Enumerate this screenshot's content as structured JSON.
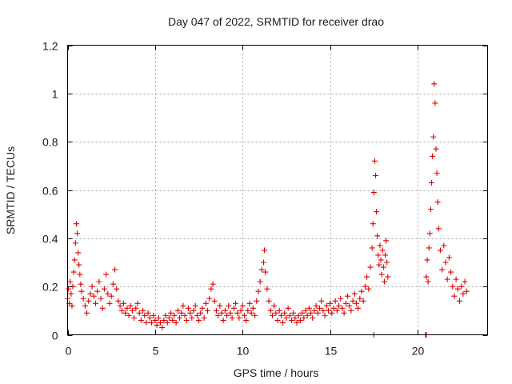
{
  "chart_data": {
    "type": "scatter",
    "title": "Day 047 of 2022, SRMTID for receiver drao",
    "xlabel": "GPS time / hours",
    "ylabel": "SRMTID / TECUs",
    "xlim": [
      0,
      24
    ],
    "ylim": [
      0,
      1.2
    ],
    "xticks": [
      0,
      5,
      10,
      15,
      20
    ],
    "yticks": [
      0,
      0.2,
      0.4,
      0.6,
      0.8,
      1,
      1.2
    ],
    "ytick_labels": [
      "0",
      "0.2",
      "0.4",
      "0.6",
      "0.8",
      "1",
      "1.2"
    ],
    "grid": true,
    "marker": "plus",
    "color": "#e00000",
    "series": [
      {
        "name": "drao",
        "points": [
          [
            0.0,
            0.15
          ],
          [
            0.05,
            0.19
          ],
          [
            0.1,
            0.13
          ],
          [
            0.15,
            0.22
          ],
          [
            0.2,
            0.17
          ],
          [
            0.25,
            0.12
          ],
          [
            0.3,
            0.2
          ],
          [
            0.35,
            0.26
          ],
          [
            0.4,
            0.31
          ],
          [
            0.45,
            0.38
          ],
          [
            0.5,
            0.46
          ],
          [
            0.55,
            0.42
          ],
          [
            0.6,
            0.34
          ],
          [
            0.65,
            0.29
          ],
          [
            0.7,
            0.25
          ],
          [
            0.75,
            0.21
          ],
          [
            0.8,
            0.18
          ],
          [
            0.9,
            0.15
          ],
          [
            1.0,
            0.12
          ],
          [
            1.1,
            0.09
          ],
          [
            1.2,
            0.14
          ],
          [
            1.3,
            0.17
          ],
          [
            1.4,
            0.2
          ],
          [
            1.5,
            0.16
          ],
          [
            1.6,
            0.13
          ],
          [
            1.7,
            0.18
          ],
          [
            1.8,
            0.22
          ],
          [
            1.9,
            0.15
          ],
          [
            2.0,
            0.11
          ],
          [
            2.1,
            0.19
          ],
          [
            2.2,
            0.25
          ],
          [
            2.3,
            0.17
          ],
          [
            2.4,
            0.13
          ],
          [
            2.5,
            0.16
          ],
          [
            2.6,
            0.21
          ],
          [
            2.7,
            0.27
          ],
          [
            2.8,
            0.19
          ],
          [
            2.9,
            0.14
          ],
          [
            3.0,
            0.12
          ],
          [
            3.1,
            0.1
          ],
          [
            3.2,
            0.13
          ],
          [
            3.3,
            0.09
          ],
          [
            3.4,
            0.11
          ],
          [
            3.5,
            0.08
          ],
          [
            3.6,
            0.12
          ],
          [
            3.7,
            0.1
          ],
          [
            3.8,
            0.07
          ],
          [
            3.9,
            0.11
          ],
          [
            4.0,
            0.13
          ],
          [
            4.1,
            0.09
          ],
          [
            4.2,
            0.06
          ],
          [
            4.3,
            0.1
          ],
          [
            4.4,
            0.08
          ],
          [
            4.5,
            0.05
          ],
          [
            4.6,
            0.09
          ],
          [
            4.7,
            0.07
          ],
          [
            4.8,
            0.05
          ],
          [
            4.9,
            0.08
          ],
          [
            5.0,
            0.06
          ],
          [
            5.1,
            0.04
          ],
          [
            5.2,
            0.07
          ],
          [
            5.3,
            0.05
          ],
          [
            5.4,
            0.03
          ],
          [
            5.5,
            0.06
          ],
          [
            5.6,
            0.08
          ],
          [
            5.7,
            0.05
          ],
          [
            5.8,
            0.07
          ],
          [
            5.9,
            0.09
          ],
          [
            6.0,
            0.06
          ],
          [
            6.1,
            0.08
          ],
          [
            6.2,
            0.05
          ],
          [
            6.3,
            0.1
          ],
          [
            6.4,
            0.07
          ],
          [
            6.5,
            0.09
          ],
          [
            6.6,
            0.12
          ],
          [
            6.7,
            0.08
          ],
          [
            6.8,
            0.06
          ],
          [
            6.9,
            0.11
          ],
          [
            7.0,
            0.09
          ],
          [
            7.1,
            0.07
          ],
          [
            7.2,
            0.1
          ],
          [
            7.3,
            0.12
          ],
          [
            7.4,
            0.08
          ],
          [
            7.5,
            0.06
          ],
          [
            7.6,
            0.09
          ],
          [
            7.7,
            0.11
          ],
          [
            7.8,
            0.07
          ],
          [
            7.9,
            0.13
          ],
          [
            8.0,
            0.1
          ],
          [
            8.1,
            0.15
          ],
          [
            8.2,
            0.19
          ],
          [
            8.3,
            0.21
          ],
          [
            8.4,
            0.14
          ],
          [
            8.5,
            0.1
          ],
          [
            8.6,
            0.08
          ],
          [
            8.7,
            0.12
          ],
          [
            8.8,
            0.09
          ],
          [
            8.9,
            0.06
          ],
          [
            9.0,
            0.1
          ],
          [
            9.1,
            0.08
          ],
          [
            9.2,
            0.12
          ],
          [
            9.3,
            0.09
          ],
          [
            9.4,
            0.07
          ],
          [
            9.5,
            0.11
          ],
          [
            9.6,
            0.13
          ],
          [
            9.7,
            0.09
          ],
          [
            9.8,
            0.07
          ],
          [
            9.9,
            0.1
          ],
          [
            10.0,
            0.12
          ],
          [
            10.1,
            0.08
          ],
          [
            10.2,
            0.06
          ],
          [
            10.3,
            0.1
          ],
          [
            10.4,
            0.13
          ],
          [
            10.5,
            0.09
          ],
          [
            10.6,
            0.11
          ],
          [
            10.7,
            0.08
          ],
          [
            10.8,
            0.14
          ],
          [
            10.9,
            0.18
          ],
          [
            11.0,
            0.22
          ],
          [
            11.1,
            0.27
          ],
          [
            11.2,
            0.3
          ],
          [
            11.25,
            0.35
          ],
          [
            11.3,
            0.26
          ],
          [
            11.4,
            0.19
          ],
          [
            11.5,
            0.14
          ],
          [
            11.6,
            0.1
          ],
          [
            11.7,
            0.08
          ],
          [
            11.8,
            0.12
          ],
          [
            11.9,
            0.09
          ],
          [
            12.0,
            0.06
          ],
          [
            12.1,
            0.1
          ],
          [
            12.2,
            0.08
          ],
          [
            12.3,
            0.05
          ],
          [
            12.4,
            0.09
          ],
          [
            12.5,
            0.07
          ],
          [
            12.6,
            0.11
          ],
          [
            12.7,
            0.08
          ],
          [
            12.8,
            0.06
          ],
          [
            12.9,
            0.09
          ],
          [
            13.0,
            0.07
          ],
          [
            13.1,
            0.05
          ],
          [
            13.2,
            0.08
          ],
          [
            13.3,
            0.06
          ],
          [
            13.4,
            0.09
          ],
          [
            13.5,
            0.07
          ],
          [
            13.6,
            0.1
          ],
          [
            13.7,
            0.08
          ],
          [
            13.8,
            0.11
          ],
          [
            13.9,
            0.09
          ],
          [
            14.0,
            0.07
          ],
          [
            14.1,
            0.1
          ],
          [
            14.2,
            0.12
          ],
          [
            14.3,
            0.09
          ],
          [
            14.4,
            0.11
          ],
          [
            14.5,
            0.14
          ],
          [
            14.6,
            0.1
          ],
          [
            14.7,
            0.08
          ],
          [
            14.8,
            0.12
          ],
          [
            14.9,
            0.1
          ],
          [
            15.0,
            0.13
          ],
          [
            15.1,
            0.09
          ],
          [
            15.2,
            0.11
          ],
          [
            15.3,
            0.14
          ],
          [
            15.4,
            0.1
          ],
          [
            15.5,
            0.12
          ],
          [
            15.6,
            0.15
          ],
          [
            15.7,
            0.11
          ],
          [
            15.8,
            0.09
          ],
          [
            15.9,
            0.13
          ],
          [
            16.0,
            0.16
          ],
          [
            16.1,
            0.12
          ],
          [
            16.2,
            0.1
          ],
          [
            16.3,
            0.14
          ],
          [
            16.4,
            0.17
          ],
          [
            16.5,
            0.13
          ],
          [
            16.6,
            0.11
          ],
          [
            16.7,
            0.15
          ],
          [
            16.8,
            0.18
          ],
          [
            16.9,
            0.14
          ],
          [
            17.0,
            0.2
          ],
          [
            17.1,
            0.24
          ],
          [
            17.2,
            0.19
          ],
          [
            17.3,
            0.28
          ],
          [
            17.4,
            0.36
          ],
          [
            17.45,
            0.46
          ],
          [
            17.5,
            0.59
          ],
          [
            17.55,
            0.72
          ],
          [
            17.6,
            0.66
          ],
          [
            17.65,
            0.51
          ],
          [
            17.7,
            0.41
          ],
          [
            17.75,
            0.33
          ],
          [
            17.8,
            0.29
          ],
          [
            17.85,
            0.37
          ],
          [
            17.9,
            0.31
          ],
          [
            17.95,
            0.25
          ],
          [
            18.0,
            0.35
          ],
          [
            18.05,
            0.28
          ],
          [
            18.1,
            0.22
          ],
          [
            18.15,
            0.33
          ],
          [
            18.2,
            0.39
          ],
          [
            18.25,
            0.3
          ],
          [
            18.3,
            0.24
          ],
          [
            17.5,
            0.0
          ],
          [
            20.45,
            0.0
          ],
          [
            20.5,
            0.0
          ],
          [
            20.5,
            0.24
          ],
          [
            20.55,
            0.31
          ],
          [
            20.6,
            0.22
          ],
          [
            20.65,
            0.36
          ],
          [
            20.7,
            0.42
          ],
          [
            20.75,
            0.52
          ],
          [
            20.8,
            0.63
          ],
          [
            20.85,
            0.74
          ],
          [
            20.9,
            0.82
          ],
          [
            20.95,
            1.04
          ],
          [
            21.0,
            0.96
          ],
          [
            21.05,
            0.77
          ],
          [
            21.1,
            0.67
          ],
          [
            21.15,
            0.55
          ],
          [
            21.2,
            0.44
          ],
          [
            21.3,
            0.35
          ],
          [
            21.4,
            0.27
          ],
          [
            21.5,
            0.37
          ],
          [
            21.6,
            0.3
          ],
          [
            21.7,
            0.23
          ],
          [
            21.8,
            0.32
          ],
          [
            21.9,
            0.26
          ],
          [
            22.0,
            0.2
          ],
          [
            22.1,
            0.16
          ],
          [
            22.2,
            0.23
          ],
          [
            22.3,
            0.19
          ],
          [
            22.4,
            0.14
          ],
          [
            22.5,
            0.2
          ],
          [
            22.6,
            0.17
          ],
          [
            22.7,
            0.22
          ],
          [
            22.8,
            0.18
          ]
        ]
      }
    ]
  }
}
